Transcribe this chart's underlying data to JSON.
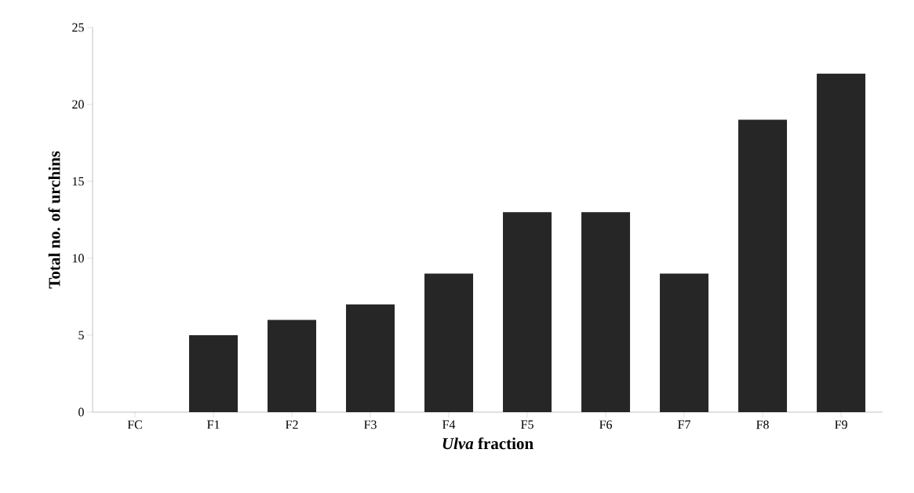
{
  "chart_data": {
    "type": "bar",
    "xlabel": "*Ulva* fraction",
    "ylabel": "Total no. of urchins",
    "categories": [
      "FC",
      "F1",
      "F2",
      "F3",
      "F4",
      "F5",
      "F6",
      "F7",
      "F8",
      "F9"
    ],
    "values": [
      0,
      5,
      6,
      7,
      9,
      13,
      13,
      9,
      19,
      22
    ],
    "color": "#262626",
    "ylim": [
      0,
      25
    ],
    "yticks": [
      0,
      5,
      10,
      15,
      20,
      25
    ]
  }
}
